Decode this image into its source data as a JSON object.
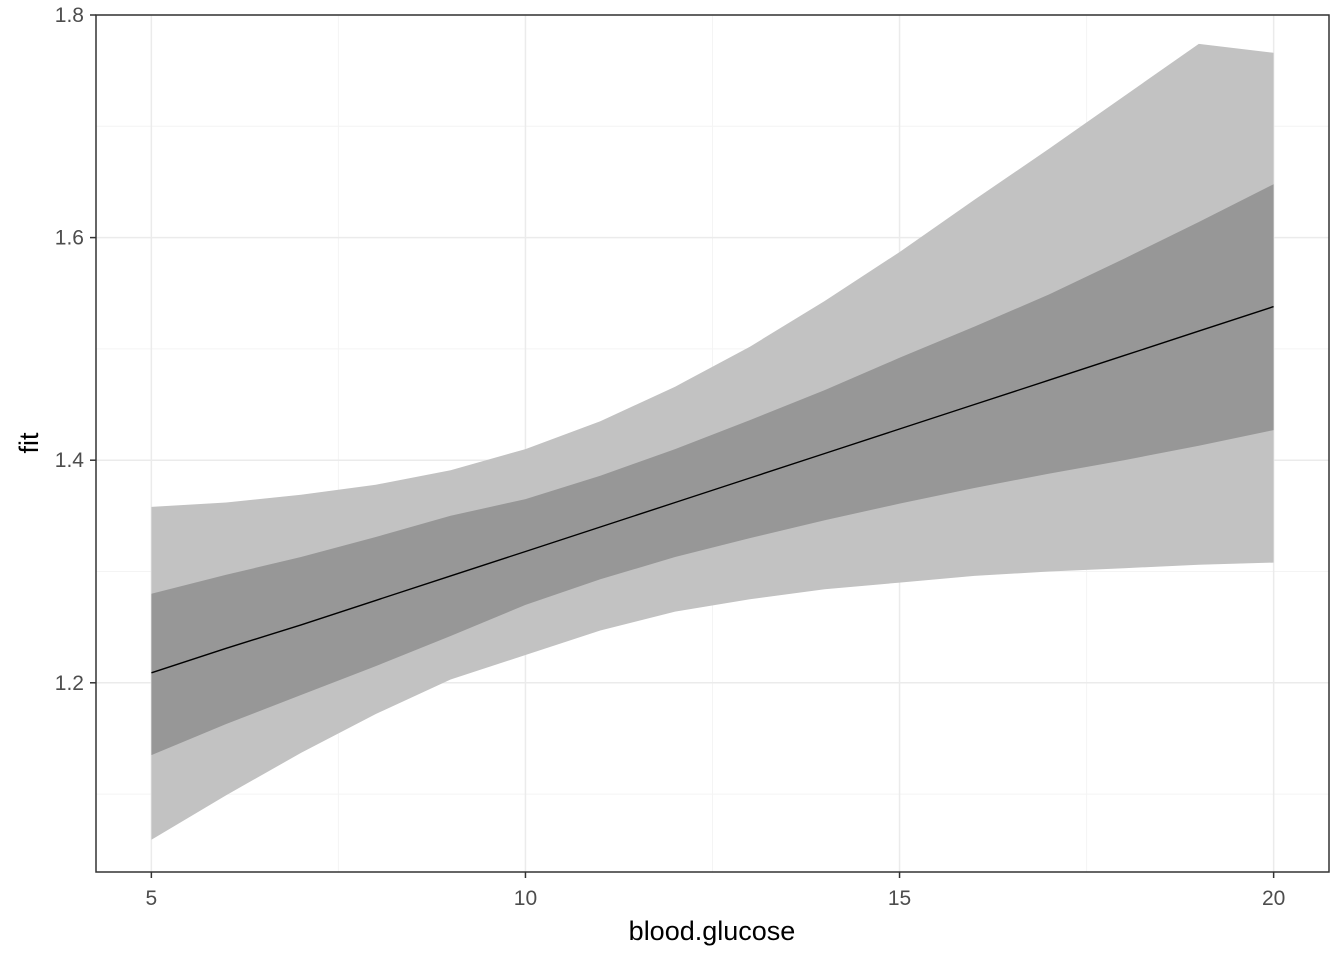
{
  "chart_data": {
    "type": "line",
    "title": "",
    "xlabel": "blood.glucose",
    "ylabel": "fit",
    "xlim": [
      4.26,
      20.74
    ],
    "ylim": [
      1.03,
      1.8
    ],
    "x_ticks": [
      5,
      10,
      15,
      20
    ],
    "x_tick_labels": [
      "5",
      "10",
      "15",
      "20"
    ],
    "y_ticks": [
      1.2,
      1.4,
      1.6,
      1.8
    ],
    "y_tick_labels": [
      "1.2",
      "1.4",
      "1.6",
      "1.8"
    ],
    "x_minor_ticks": [
      7.5,
      12.5,
      17.5
    ],
    "y_minor_ticks": [
      1.1,
      1.3,
      1.5,
      1.7
    ],
    "grid": true,
    "x": [
      5,
      6,
      7,
      8,
      9,
      10,
      11,
      12,
      13,
      14,
      15,
      16,
      17,
      18,
      19,
      20
    ],
    "fit": [
      1.209,
      1.231,
      1.252,
      1.274,
      1.296,
      1.318,
      1.34,
      1.362,
      1.384,
      1.406,
      1.428,
      1.45,
      1.472,
      1.494,
      1.516,
      1.538
    ],
    "band_outer": {
      "lower": [
        1.059,
        1.099,
        1.137,
        1.172,
        1.203,
        1.225,
        1.247,
        1.264,
        1.275,
        1.284,
        1.29,
        1.296,
        1.3,
        1.303,
        1.306,
        1.308
      ],
      "upper": [
        1.358,
        1.362,
        1.369,
        1.378,
        1.391,
        1.41,
        1.435,
        1.466,
        1.502,
        1.543,
        1.587,
        1.634,
        1.68,
        1.727,
        1.774,
        1.766
      ]
    },
    "band_inner": {
      "lower": [
        1.135,
        1.163,
        1.189,
        1.215,
        1.242,
        1.27,
        1.293,
        1.313,
        1.33,
        1.346,
        1.361,
        1.375,
        1.388,
        1.4,
        1.413,
        1.427
      ],
      "upper": [
        1.28,
        1.297,
        1.313,
        1.331,
        1.35,
        1.365,
        1.386,
        1.41,
        1.436,
        1.463,
        1.492,
        1.52,
        1.549,
        1.581,
        1.614,
        1.648
      ]
    },
    "colors": {
      "outer_band": "#c2c2c2",
      "inner_band": "#979797",
      "line": "#000000",
      "grid_major": "#ebebeb",
      "grid_minor": "#f4f4f4",
      "axis_text": "#4d4d4d",
      "panel_border": "#333333"
    }
  }
}
